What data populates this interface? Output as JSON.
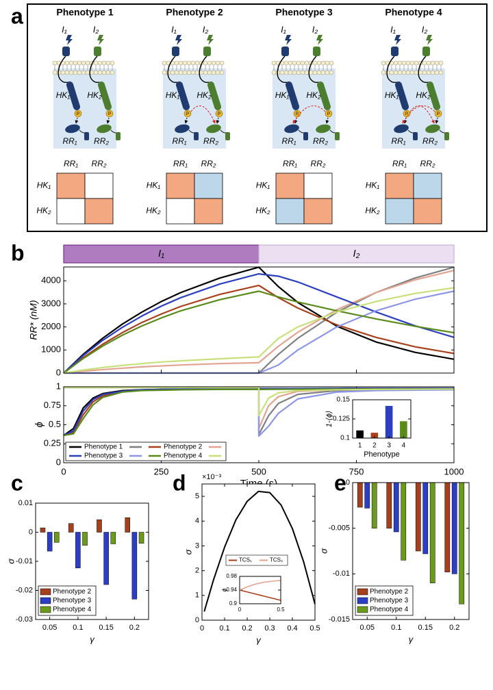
{
  "panel_labels": [
    "a",
    "b",
    "c",
    "d",
    "e"
  ],
  "diagram": {
    "signals": [
      "I₁",
      "I₂"
    ],
    "kinases": [
      "HK₁",
      "HK₂"
    ],
    "regulators": [
      "RR₁",
      "RR₂"
    ],
    "phospho_label": "P",
    "colors": [
      "#1f3b6f",
      "#4d7d2e"
    ],
    "crosstalk_color": "#bcd6ea",
    "crosstalk_arrow_color": "#e02020",
    "phenotypes": [
      {
        "title": "Phenotype 1",
        "matrix_colors": [
          [
            "#f4a882",
            "#ffffff"
          ],
          [
            "#ffffff",
            "#f4a882"
          ]
        ]
      },
      {
        "title": "Phenotype 2",
        "matrix_colors": [
          [
            "#f4a882",
            "#bcd6ea"
          ],
          [
            "#ffffff",
            "#f4a882"
          ]
        ]
      },
      {
        "title": "Phenotype 3",
        "matrix_colors": [
          [
            "#f4a882",
            "#ffffff"
          ],
          [
            "#bcd6ea",
            "#f4a882"
          ]
        ]
      },
      {
        "title": "Phenotype 4",
        "matrix_colors": [
          [
            "#f4a882",
            "#bcd6ea"
          ],
          [
            "#bcd6ea",
            "#f4a882"
          ]
        ]
      }
    ]
  },
  "chart_data": [
    {
      "type": "line",
      "ylabel": "RR* (nM)",
      "xlim": [
        0,
        1000
      ],
      "ylim": [
        0,
        4600
      ],
      "yticks": [
        0,
        1000,
        2000,
        3000,
        4000
      ],
      "phases": [
        {
          "label": "I₁",
          "start": 0,
          "end": 500,
          "color": "#b07cc0",
          "edge_color": "#7b2d8e"
        },
        {
          "label": "I₂",
          "start": 500,
          "end": 1000,
          "color": "#ecdff1",
          "edge_color": "#c9b1d6"
        }
      ],
      "x": [
        0,
        50,
        100,
        150,
        200,
        250,
        300,
        400,
        500,
        550,
        600,
        700,
        800,
        900,
        1000
      ],
      "series": [
        {
          "colors": [
            "#000000",
            "#7f7f7f"
          ],
          "values": [
            0,
            810,
            1510,
            2120,
            2640,
            3100,
            3490,
            4120,
            4590,
            3750,
            3060,
            2030,
            1350,
            900,
            600
          ],
          "values_2": [
            0,
            0,
            0,
            0,
            0,
            0,
            0,
            0,
            0,
            810,
            1510,
            2640,
            3490,
            4120,
            4590
          ]
        },
        {
          "colors": [
            "#a8401c",
            "#e4a290"
          ],
          "values": [
            0,
            670,
            1250,
            1750,
            2190,
            2560,
            2890,
            3410,
            3800,
            3270,
            2820,
            2090,
            1550,
            1140,
            850
          ],
          "values_2": [
            0,
            80,
            150,
            210,
            270,
            310,
            350,
            410,
            450,
            1160,
            1770,
            2750,
            3490,
            4040,
            4450
          ]
        },
        {
          "colors": [
            "#2b3fbf",
            "#8c96e8"
          ],
          "values": [
            0,
            760,
            1420,
            1980,
            2470,
            2900,
            3270,
            3860,
            4300,
            4200,
            3950,
            3300,
            2650,
            2050,
            1550
          ],
          "values_2": [
            0,
            0,
            0,
            0,
            0,
            0,
            0,
            0,
            0,
            350,
            1000,
            2000,
            2700,
            3200,
            3550
          ]
        },
        {
          "colors": [
            "#5a8a1a",
            "#c8e07a"
          ],
          "values": [
            0,
            630,
            1170,
            1640,
            2040,
            2390,
            2700,
            3180,
            3550,
            3300,
            3080,
            2700,
            2350,
            2030,
            1750
          ],
          "values_2": [
            0,
            130,
            240,
            330,
            410,
            480,
            530,
            620,
            700,
            1500,
            2000,
            2650,
            3100,
            3450,
            3700
          ]
        }
      ]
    },
    {
      "type": "line",
      "xlabel": "Time (s)",
      "ylabel": "ϕ",
      "xlim": [
        0,
        1000
      ],
      "ylim": [
        0,
        1
      ],
      "xticks": [
        0,
        250,
        500,
        750,
        1000
      ],
      "yticks": [
        0,
        0.25,
        0.5,
        0.75,
        1
      ],
      "legend": "lower left",
      "x": [
        0,
        25,
        50,
        75,
        100,
        150,
        200,
        300,
        400,
        500,
        500,
        525,
        550,
        600,
        700,
        800,
        1000
      ],
      "series": [
        {
          "name": "Phenotype 1",
          "colors": [
            "#000000",
            "#7f7f7f"
          ],
          "values": [
            0.36,
            0.45,
            0.72,
            0.85,
            0.91,
            0.95,
            0.96,
            0.97,
            0.975,
            0.975,
            0.975,
            0.975,
            0.975,
            0.977,
            0.978,
            0.979,
            0.98
          ],
          "values_2": [
            0.99,
            0.99,
            0.99,
            0.99,
            0.99,
            0.99,
            0.99,
            0.99,
            0.99,
            0.99,
            0.37,
            0.62,
            0.78,
            0.9,
            0.95,
            0.96,
            0.965
          ]
        },
        {
          "name": "Phenotype 2",
          "colors": [
            "#a8401c",
            "#e4a290"
          ],
          "values": [
            0.36,
            0.4,
            0.63,
            0.8,
            0.88,
            0.94,
            0.955,
            0.965,
            0.97,
            0.97,
            0.97,
            0.972,
            0.973,
            0.975,
            0.977,
            0.978,
            0.98
          ],
          "values_2": [
            0.99,
            0.99,
            0.99,
            0.99,
            0.99,
            0.99,
            0.99,
            0.99,
            0.99,
            0.99,
            0.45,
            0.75,
            0.87,
            0.94,
            0.96,
            0.965,
            0.97
          ]
        },
        {
          "name": "Phenotype 3",
          "colors": [
            "#2b3fbf",
            "#8c96e8"
          ],
          "values": [
            0.36,
            0.42,
            0.68,
            0.83,
            0.9,
            0.94,
            0.96,
            0.97,
            0.975,
            0.975,
            0.975,
            0.975,
            0.976,
            0.977,
            0.978,
            0.979,
            0.98
          ],
          "values_2": [
            0.99,
            0.99,
            0.99,
            0.99,
            0.99,
            0.99,
            0.99,
            0.99,
            0.99,
            0.99,
            0.35,
            0.48,
            0.65,
            0.84,
            0.93,
            0.95,
            0.96
          ]
        },
        {
          "name": "Phenotype 4",
          "colors": [
            "#5a8a1a",
            "#c8e07a"
          ],
          "values": [
            0.36,
            0.38,
            0.58,
            0.76,
            0.86,
            0.93,
            0.95,
            0.96,
            0.965,
            0.965,
            0.965,
            0.966,
            0.967,
            0.968,
            0.97,
            0.971,
            0.972
          ],
          "values_2": [
            0.99,
            0.99,
            0.99,
            0.99,
            0.99,
            0.99,
            0.99,
            0.99,
            0.99,
            0.99,
            0.62,
            0.85,
            0.92,
            0.95,
            0.96,
            0.965,
            0.97
          ]
        }
      ]
    },
    {
      "type": "bar",
      "xlabel": "Phenotype",
      "ylabel": "1-⟨ϕ⟩",
      "categories": [
        "1",
        "2",
        "3",
        "4"
      ],
      "values": [
        0.11,
        0.107,
        0.142,
        0.122
      ],
      "colors": [
        "#000000",
        "#a8401c",
        "#2b3fbf",
        "#5a8a1a"
      ],
      "ylim": [
        0.1,
        0.15
      ],
      "yticks": [
        0.1,
        0.125,
        0.15
      ]
    },
    {
      "type": "grouped_bar",
      "xlabel": "γ",
      "ylabel": "σ",
      "categories": [
        "0.05",
        "0.1",
        "0.15",
        "0.2"
      ],
      "ylim": [
        -0.03,
        0.01
      ],
      "yticks": [
        -0.03,
        -0.02,
        -0.01,
        0,
        0.01
      ],
      "legend": "lower left",
      "series": [
        {
          "name": "Phenotype 2",
          "color": "#a5401f",
          "values": [
            0.0015,
            0.003,
            0.0043,
            0.005
          ]
        },
        {
          "name": "Phenotype 3",
          "color": "#2c3ec4",
          "values": [
            -0.0065,
            -0.0123,
            -0.018,
            -0.023
          ]
        },
        {
          "name": "Phenotype 4",
          "color": "#6b9a1c",
          "values": [
            -0.0035,
            -0.0045,
            -0.004,
            -0.0038
          ]
        }
      ]
    },
    {
      "type": "line",
      "xlabel": "γ",
      "ylabel": "σ",
      "y_multiplier": "×10⁻³",
      "xlim": [
        0,
        0.5
      ],
      "ylim": [
        0,
        5.5
      ],
      "xticks": [
        0,
        0.1,
        0.2,
        0.3,
        0.4,
        0.5
      ],
      "yticks": [
        0,
        1,
        2,
        3,
        4,
        5
      ],
      "x": [
        0.01,
        0.05,
        0.1,
        0.15,
        0.2,
        0.25,
        0.3,
        0.35,
        0.4,
        0.45,
        0.5
      ],
      "series": [
        {
          "color": "#000000",
          "values": [
            0.35,
            1.6,
            2.95,
            4.05,
            4.8,
            5.2,
            5.15,
            4.65,
            3.7,
            2.35,
            0.65
          ]
        }
      ]
    },
    {
      "type": "line",
      "ylabel": "ϕ",
      "xlim": [
        0,
        0.5
      ],
      "ylim": [
        0.9,
        0.98
      ],
      "xticks": [
        0,
        0.5
      ],
      "yticks": [
        0.9,
        0.94,
        0.98
      ],
      "legend": "top",
      "x": [
        0,
        0.1,
        0.2,
        0.3,
        0.4,
        0.5
      ],
      "series": [
        {
          "name": "TCS₁",
          "color": "#a8401c",
          "values": [
            0.94,
            0.934,
            0.928,
            0.922,
            0.916,
            0.91
          ]
        },
        {
          "name": "TCS₂",
          "color": "#e4a290",
          "values": [
            0.94,
            0.95,
            0.958,
            0.963,
            0.966,
            0.968
          ]
        }
      ]
    },
    {
      "type": "grouped_bar",
      "xlabel": "γ",
      "ylabel": "σ",
      "categories": [
        "0.05",
        "0.1",
        "0.15",
        "0.2"
      ],
      "ylim": [
        -0.015,
        0
      ],
      "yticks": [
        -0.015,
        -0.01,
        -0.005,
        0
      ],
      "legend": "lower left",
      "series": [
        {
          "name": "Phenotype 2",
          "color": "#a5401f",
          "values": [
            -0.0027,
            -0.005,
            -0.0075,
            -0.0098
          ]
        },
        {
          "name": "Phenotype 3",
          "color": "#2c3ec4",
          "values": [
            -0.0028,
            -0.0054,
            -0.0078,
            -0.01
          ]
        },
        {
          "name": "Phenotype 4",
          "color": "#6b9a1c",
          "values": [
            -0.005,
            -0.0085,
            -0.011,
            -0.0133
          ]
        }
      ]
    }
  ]
}
